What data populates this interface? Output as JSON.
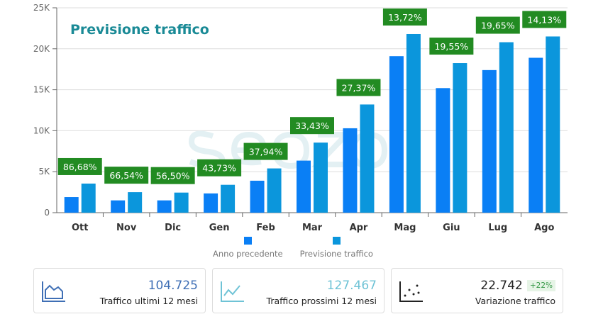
{
  "chart_data": {
    "type": "bar",
    "title": "Previsione traffico",
    "watermark": "seozoom",
    "categories": [
      "Ott",
      "Nov",
      "Dic",
      "Gen",
      "Feb",
      "Mar",
      "Apr",
      "Mag",
      "Giu",
      "Lug",
      "Ago"
    ],
    "series": [
      {
        "name": "Anno precedente",
        "color": "#0a7ff5",
        "values": [
          1900,
          1500,
          1500,
          2350,
          3900,
          6350,
          10300,
          19100,
          15200,
          17400,
          18900
        ]
      },
      {
        "name": "Previsione traffico",
        "color": "#0b96dc",
        "values": [
          3550,
          2500,
          2450,
          3400,
          5400,
          8550,
          13200,
          21800,
          18250,
          20800,
          21500
        ]
      }
    ],
    "annotations": [
      "86,68%",
      "66,54%",
      "56,50%",
      "43,73%",
      "37,94%",
      "33,43%",
      "27,37%",
      "13,72%",
      "19,55%",
      "19,65%",
      "14,13%"
    ],
    "annotation_color": "#228b22",
    "yticks": [
      "0",
      "5K",
      "10K",
      "15K",
      "20K",
      "25K"
    ],
    "ylim": [
      0,
      25000
    ],
    "grid": true,
    "legend": "bottom"
  },
  "cards": [
    {
      "value": "104.725",
      "label": "Traffico ultimi 12 mesi",
      "icon": "area-chart-icon",
      "color": "#3f6fb5"
    },
    {
      "value": "127.467",
      "label": "Traffico prossimi 12 mesi",
      "icon": "line-chart-icon",
      "color": "#6fc3d6"
    },
    {
      "value": "22.742",
      "badge": "+22%",
      "label": "Variazione traffico",
      "icon": "scatter-chart-icon",
      "color": "#222"
    }
  ]
}
